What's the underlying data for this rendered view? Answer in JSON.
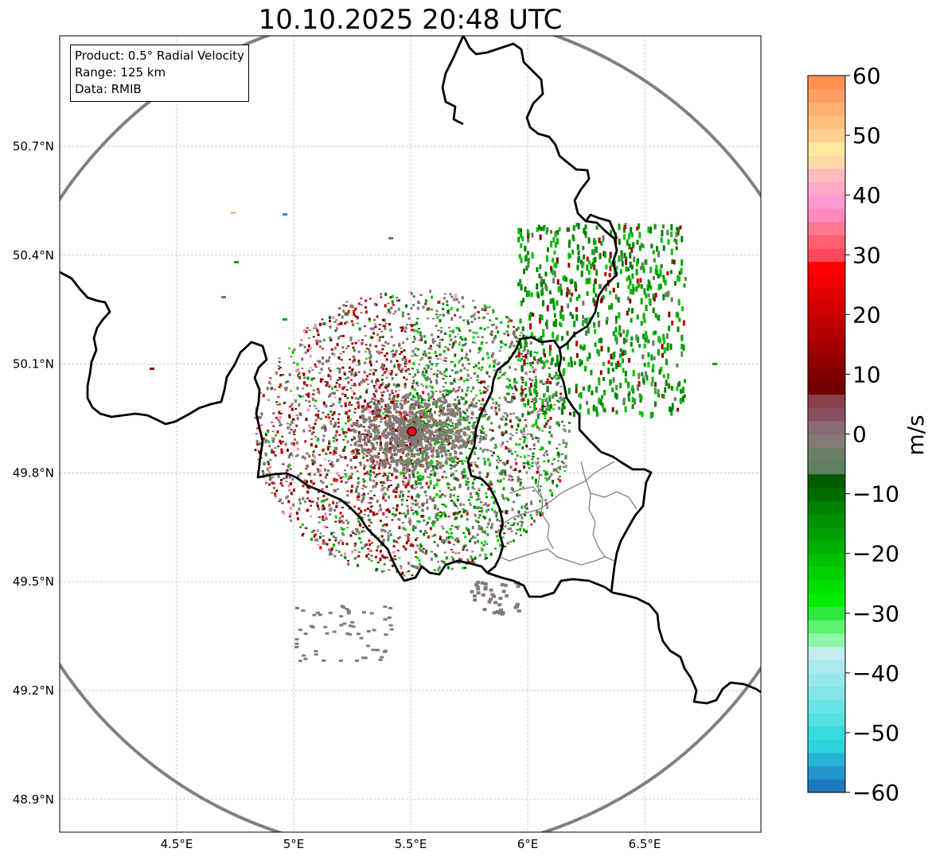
{
  "title": "10.10.2025 20:48 UTC",
  "info_box": {
    "product": "Product: 0.5° Radial Velocity",
    "range": "Range: 125 km",
    "data": "Data: RMIB"
  },
  "map": {
    "lon_range": [
      4.0,
      7.0
    ],
    "lat_range": [
      48.8,
      51.0
    ],
    "lat_ticks": [
      {
        "value": 50.7,
        "label": "50.7°N"
      },
      {
        "value": 50.4,
        "label": "50.4°N"
      },
      {
        "value": 50.1,
        "label": "50.1°N"
      },
      {
        "value": 49.8,
        "label": "49.8°N"
      },
      {
        "value": 49.5,
        "label": "49.5°N"
      },
      {
        "value": 49.2,
        "label": "49.2°N"
      },
      {
        "value": 48.9,
        "label": "48.9°N"
      }
    ],
    "lon_ticks": [
      {
        "value": 4.5,
        "label": "4.5°E"
      },
      {
        "value": 5.0,
        "label": "5°E"
      },
      {
        "value": 5.5,
        "label": "5.5°E"
      },
      {
        "value": 6.0,
        "label": "6°E"
      },
      {
        "value": 6.5,
        "label": "6.5°E"
      }
    ],
    "radar_site": {
      "lon": 5.505,
      "lat": 49.914,
      "color": "#e8001c"
    },
    "range_ring_color": "#808080",
    "border_color": "#000000",
    "admin_border_color": "#808080",
    "grid": true
  },
  "colorbar": {
    "unit": "m/s",
    "min": -60,
    "max": 60,
    "ticks": [
      {
        "value": 60,
        "label": "60"
      },
      {
        "value": 50,
        "label": "50"
      },
      {
        "value": 40,
        "label": "40"
      },
      {
        "value": 30,
        "label": "30"
      },
      {
        "value": 20,
        "label": "20"
      },
      {
        "value": 10,
        "label": "10"
      },
      {
        "value": 0,
        "label": "0"
      },
      {
        "value": -10,
        "label": "−10"
      },
      {
        "value": -20,
        "label": "−20"
      },
      {
        "value": -30,
        "label": "−30"
      },
      {
        "value": -40,
        "label": "−40"
      },
      {
        "value": -50,
        "label": "−50"
      },
      {
        "value": -60,
        "label": "−60"
      }
    ],
    "colors": [
      "#2079c0",
      "#2397cc",
      "#26b4d6",
      "#2dd4dc",
      "#3adbdf",
      "#55e0e2",
      "#6ae3e4",
      "#82e6e8",
      "#96e8ea",
      "#ace9ec",
      "#c2eef0",
      "#8ff5a8",
      "#5cf26d",
      "#2ee83f",
      "#00ee00",
      "#00e000",
      "#00d000",
      "#00c000",
      "#00b000",
      "#00a000",
      "#009000",
      "#008000",
      "#006b00",
      "#005a00",
      "#5f805c",
      "#6a7f66",
      "#867a76",
      "#8a6a74",
      "#8a5060",
      "#8a4048",
      "#700000",
      "#800000",
      "#900000",
      "#a00000",
      "#b00000",
      "#c00000",
      "#d00000",
      "#e00000",
      "#f00000",
      "#ff0000",
      "#ff4860",
      "#ff6070",
      "#ff7890",
      "#ff88c0",
      "#ff99d0",
      "#ffa8c8",
      "#ffbcbc",
      "#ffd8a8",
      "#ffe8a0",
      "#ffd090",
      "#ffc080",
      "#ffb070",
      "#ffa060",
      "#ff9050"
    ]
  }
}
